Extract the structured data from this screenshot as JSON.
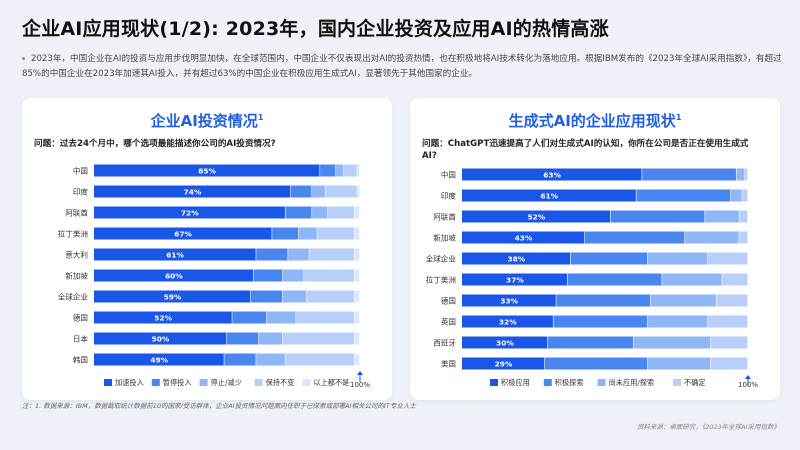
{
  "title": "企业AI应用现状(1/2): 2023年，国内企业投资及应用AI的热情高涨",
  "intro": "2023年，中国企业在AI的投资与应用步伐明显加快，在全球范围内，中国企业不仅表现出对AI的投资热情，也在积极地将AI技术转化为落地应用。根据IBM发布的《2023年全球AI采用指数》，有超过85%的中国企业在2023年加速其AI投入，并有超过63%的中国企业在积极应用生成式AI，显著领先于其他国家的企业。",
  "colors": {
    "title_blue": "#1f5fe0",
    "series": [
      "#1a56e8",
      "#4a86f0",
      "#8fb6f6",
      "#b7cff9",
      "#d9e6fc"
    ]
  },
  "footnote": "注：1. 数据来源：IBM，数据截取统计数据前10的国家/受访群体，企业AI投资情况问题面向任职于已探索或部署AI相关公司的IT专业人士",
  "source": "资料来源：桌面研究，《2023年全球AI采用指数》",
  "chart_data": [
    {
      "type": "bar",
      "orientation": "horizontal",
      "stacked": true,
      "title": "企业AI投资情况",
      "title_footnote_mark": "1",
      "question": "问题：过去24个月中，哪个选项最能描述你公司的AI投资情况?",
      "categories": [
        "中国",
        "印度",
        "阿联酋",
        "拉丁美洲",
        "意大利",
        "新加坡",
        "全球企业",
        "德国",
        "日本",
        "韩国"
      ],
      "series": [
        {
          "name": "加速投入",
          "values": [
            85,
            74,
            72,
            67,
            61,
            60,
            59,
            52,
            50,
            49
          ]
        },
        {
          "name": "暂停投入",
          "values": [
            6,
            8,
            10,
            10,
            12,
            11,
            12,
            13,
            12,
            12
          ]
        },
        {
          "name": "停止/减少",
          "values": [
            3,
            5,
            6,
            7,
            8,
            8,
            9,
            11,
            9,
            11
          ]
        },
        {
          "name": "保持不变",
          "values": [
            5,
            12,
            10,
            14,
            17,
            19,
            18,
            22,
            27,
            26
          ]
        },
        {
          "name": "以上都不是",
          "values": [
            1,
            1,
            2,
            2,
            2,
            2,
            2,
            2,
            2,
            2
          ]
        }
      ],
      "xlim": [
        0,
        100
      ],
      "end_label": "100%"
    },
    {
      "type": "bar",
      "orientation": "horizontal",
      "stacked": true,
      "title": "生成式AI的企业应用现状",
      "title_footnote_mark": "1",
      "question": "问题：ChatGPT迅速提高了人们对生成式AI的认知，你所在公司是否正在使用生成式AI?",
      "categories": [
        "中国",
        "印度",
        "阿联酋",
        "新加坡",
        "全球企业",
        "拉丁美洲",
        "德国",
        "英国",
        "西班牙",
        "美国"
      ],
      "series": [
        {
          "name": "积极应用",
          "values": [
            63,
            61,
            52,
            43,
            38,
            37,
            33,
            32,
            30,
            29
          ]
        },
        {
          "name": "积极探索",
          "values": [
            33,
            33,
            33,
            35,
            27,
            33,
            33,
            33,
            30,
            36
          ]
        },
        {
          "name": "尚未应用/探索",
          "values": [
            3,
            4,
            12,
            19,
            21,
            21,
            23,
            21,
            27,
            22
          ]
        },
        {
          "name": "不确定",
          "values": [
            1,
            2,
            3,
            3,
            14,
            9,
            11,
            14,
            13,
            13
          ]
        }
      ],
      "xlim": [
        0,
        100
      ],
      "end_label": "100%"
    }
  ]
}
